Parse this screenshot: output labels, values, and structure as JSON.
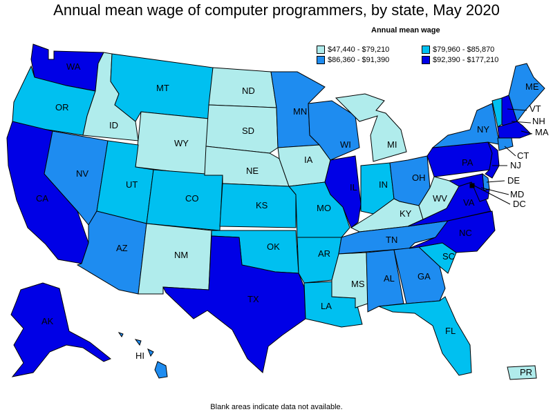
{
  "title": "Annual mean wage of computer programmers, by state, May 2020",
  "legend": {
    "title": "Annual mean wage",
    "items": [
      {
        "label": "$47,440 - $79,210",
        "color": "#b0ecec"
      },
      {
        "label": "$79,960 - $85,870",
        "color": "#00c0f0"
      },
      {
        "label": "$86,360 - $91,390",
        "color": "#1e8cf0"
      },
      {
        "label": "$92,390 - $177,210",
        "color": "#0000e6"
      }
    ]
  },
  "footnote": "Blank areas indicate data not available.",
  "states": {
    "WA": "WA",
    "OR": "OR",
    "CA": "CA",
    "ID": "ID",
    "NV": "NV",
    "MT": "MT",
    "WY": "WY",
    "UT": "UT",
    "AZ": "AZ",
    "CO": "CO",
    "NM": "NM",
    "ND": "ND",
    "SD": "SD",
    "NE": "NE",
    "KS": "KS",
    "OK": "OK",
    "TX": "TX",
    "MN": "MN",
    "IA": "IA",
    "MO": "MO",
    "AR": "AR",
    "LA": "LA",
    "WI": "WI",
    "IL": "IL",
    "MI": "MI",
    "IN": "IN",
    "OH": "OH",
    "KY": "KY",
    "TN": "TN",
    "MS": "MS",
    "AL": "AL",
    "GA": "GA",
    "FL": "FL",
    "SC": "SC",
    "NC": "NC",
    "VA": "VA",
    "WV": "WV",
    "PA": "PA",
    "NY": "NY",
    "ME": "ME",
    "VT": "VT",
    "NH": "NH",
    "MA": "MA",
    "CT": "CT",
    "NJ": "NJ",
    "DE": "DE",
    "MD": "MD",
    "DC": "DC",
    "AK": "AK",
    "HI": "HI",
    "PR": "PR"
  }
}
